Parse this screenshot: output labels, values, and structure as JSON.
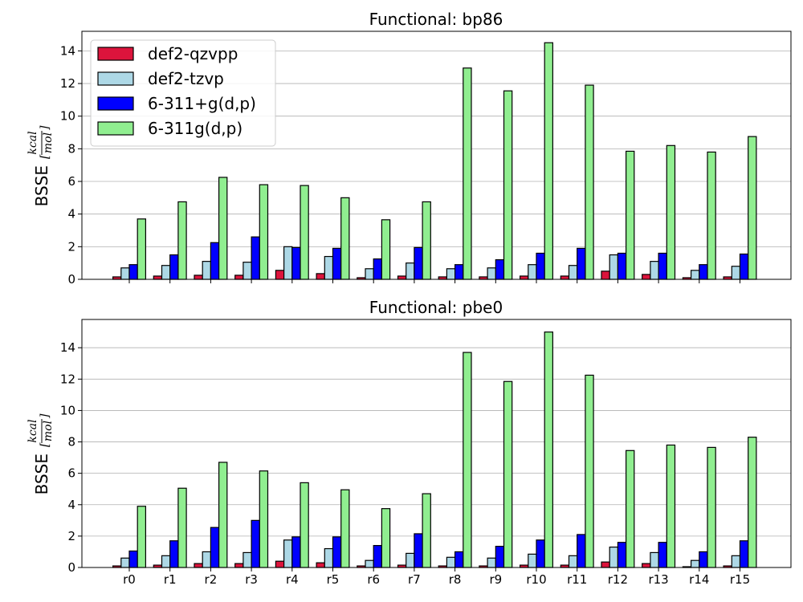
{
  "chart_data": [
    {
      "type": "bar",
      "title": "Functional: bp86",
      "xlabel": "",
      "ylabel": "BSSE",
      "ylabel_unit_numerator": "kcal",
      "ylabel_unit_denominator": "mol",
      "categories": [
        "r0",
        "r1",
        "r2",
        "r3",
        "r4",
        "r5",
        "r6",
        "r7",
        "r8",
        "r9",
        "r10",
        "r11",
        "r12",
        "r13",
        "r14",
        "r15"
      ],
      "ylim": [
        0,
        15.2
      ],
      "yticks": [
        0,
        2,
        4,
        6,
        8,
        10,
        12,
        14
      ],
      "grid": "y",
      "legend_position": "top-left",
      "series": [
        {
          "name": "def2-qzvpp",
          "color": "#dc143c",
          "values": [
            0.15,
            0.2,
            0.25,
            0.25,
            0.55,
            0.35,
            0.1,
            0.2,
            0.15,
            0.15,
            0.2,
            0.2,
            0.5,
            0.3,
            0.1,
            0.15
          ]
        },
        {
          "name": "def2-tzvp",
          "color": "#add8e6",
          "values": [
            0.7,
            0.85,
            1.1,
            1.05,
            2.0,
            1.4,
            0.65,
            1.0,
            0.65,
            0.7,
            0.9,
            0.85,
            1.5,
            1.1,
            0.55,
            0.8
          ]
        },
        {
          "name": "6-311+g(d,p)",
          "color": "#0000ff",
          "values": [
            0.9,
            1.5,
            2.25,
            2.6,
            1.95,
            1.9,
            1.25,
            1.95,
            0.9,
            1.2,
            1.6,
            1.9,
            1.6,
            1.6,
            0.9,
            1.55
          ]
        },
        {
          "name": "6-311g(d,p)",
          "color": "#90ee90",
          "values": [
            3.7,
            4.75,
            6.25,
            5.8,
            5.75,
            5.0,
            3.65,
            4.75,
            12.95,
            11.55,
            14.5,
            11.9,
            7.85,
            8.2,
            7.8,
            8.75
          ]
        }
      ]
    },
    {
      "type": "bar",
      "title": "Functional: pbe0",
      "xlabel": "",
      "ylabel": "BSSE",
      "ylabel_unit_numerator": "kcal",
      "ylabel_unit_denominator": "mol",
      "categories": [
        "r0",
        "r1",
        "r2",
        "r3",
        "r4",
        "r5",
        "r6",
        "r7",
        "r8",
        "r9",
        "r10",
        "r11",
        "r12",
        "r13",
        "r14",
        "r15"
      ],
      "ylim": [
        0,
        15.8
      ],
      "yticks": [
        0,
        2,
        4,
        6,
        8,
        10,
        12,
        14
      ],
      "grid": "y",
      "series": [
        {
          "name": "def2-qzvpp",
          "color": "#dc143c",
          "values": [
            0.1,
            0.15,
            0.25,
            0.25,
            0.4,
            0.3,
            0.1,
            0.15,
            0.1,
            0.1,
            0.15,
            0.15,
            0.35,
            0.25,
            0.05,
            0.1
          ]
        },
        {
          "name": "def2-tzvp",
          "color": "#add8e6",
          "values": [
            0.6,
            0.75,
            1.0,
            0.95,
            1.75,
            1.2,
            0.45,
            0.9,
            0.65,
            0.6,
            0.85,
            0.75,
            1.3,
            0.95,
            0.45,
            0.75
          ]
        },
        {
          "name": "6-311+g(d,p)",
          "color": "#0000ff",
          "values": [
            1.05,
            1.7,
            2.55,
            3.0,
            1.95,
            1.95,
            1.4,
            2.15,
            1.0,
            1.35,
            1.75,
            2.1,
            1.6,
            1.6,
            1.0,
            1.7
          ]
        },
        {
          "name": "6-311g(d,p)",
          "color": "#90ee90",
          "values": [
            3.9,
            5.05,
            6.7,
            6.15,
            5.4,
            4.95,
            3.75,
            4.7,
            13.7,
            11.85,
            15.0,
            12.25,
            7.45,
            7.8,
            7.65,
            8.3
          ]
        }
      ]
    }
  ]
}
